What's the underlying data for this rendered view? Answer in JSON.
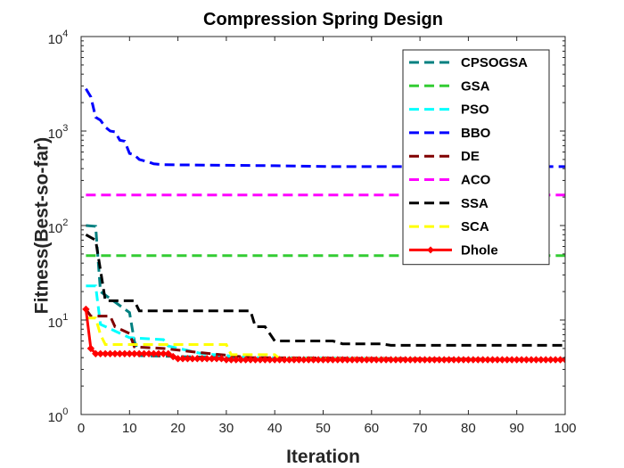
{
  "chart_data": {
    "type": "line",
    "title": "Compression Spring Design",
    "xlabel": "Iteration",
    "ylabel": "Fitness(Best-so-far)",
    "xlim": [
      0,
      100
    ],
    "ylim": [
      1,
      10000
    ],
    "yscale": "log",
    "xticks": [
      0,
      10,
      20,
      30,
      40,
      50,
      60,
      70,
      80,
      90,
      100
    ],
    "yticks": [
      1,
      10,
      100,
      1000,
      10000
    ],
    "ytick_labels": [
      {
        "base": "10",
        "exp": "0"
      },
      {
        "base": "10",
        "exp": "1"
      },
      {
        "base": "10",
        "exp": "2"
      },
      {
        "base": "10",
        "exp": "3"
      },
      {
        "base": "10",
        "exp": "4"
      }
    ],
    "grid": false,
    "legend_position": "top-right",
    "series": [
      {
        "name": "CPSOGSA",
        "color": "#008080",
        "dash": "dashed",
        "points": [
          [
            1,
            100
          ],
          [
            3,
            98
          ],
          [
            4,
            20
          ],
          [
            10,
            12
          ],
          [
            11,
            6
          ],
          [
            12,
            4.2
          ],
          [
            20,
            4.1
          ],
          [
            40,
            3.9
          ],
          [
            60,
            3.8
          ],
          [
            100,
            3.8
          ]
        ]
      },
      {
        "name": "GSA",
        "color": "#33cc33",
        "dash": "dashed",
        "points": [
          [
            1,
            48
          ],
          [
            100,
            48
          ]
        ]
      },
      {
        "name": "PSO",
        "color": "#00ffff",
        "dash": "dashed",
        "points": [
          [
            1,
            23
          ],
          [
            3,
            23
          ],
          [
            4,
            9
          ],
          [
            10,
            6.5
          ],
          [
            17,
            6.2
          ],
          [
            18,
            5.3
          ],
          [
            25,
            4.4
          ],
          [
            35,
            4
          ],
          [
            100,
            3.8
          ]
        ]
      },
      {
        "name": "BBO",
        "color": "#0000ff",
        "dash": "dashed",
        "points": [
          [
            1,
            2800
          ],
          [
            2,
            2300
          ],
          [
            3,
            1400
          ],
          [
            4,
            1300
          ],
          [
            5,
            1100
          ],
          [
            6,
            1000
          ],
          [
            7,
            980
          ],
          [
            8,
            800
          ],
          [
            9,
            780
          ],
          [
            10,
            580
          ],
          [
            11,
            560
          ],
          [
            12,
            500
          ],
          [
            14,
            470
          ],
          [
            15,
            450
          ],
          [
            17,
            440
          ],
          [
            40,
            430
          ],
          [
            52,
            420
          ],
          [
            100,
            420
          ]
        ]
      },
      {
        "name": "DE",
        "color": "#800000",
        "dash": "dashed",
        "points": [
          [
            1,
            13
          ],
          [
            2,
            11
          ],
          [
            6,
            11
          ],
          [
            7,
            8.5
          ],
          [
            10,
            7.2
          ],
          [
            11,
            5.2
          ],
          [
            17,
            5
          ],
          [
            25,
            4.5
          ],
          [
            35,
            4
          ],
          [
            100,
            3.8
          ]
        ]
      },
      {
        "name": "ACO",
        "color": "#ff00ff",
        "dash": "dashed",
        "points": [
          [
            1,
            210
          ],
          [
            100,
            210
          ]
        ]
      },
      {
        "name": "SSA",
        "color": "#000000",
        "dash": "dashed",
        "points": [
          [
            1,
            80
          ],
          [
            3,
            70
          ],
          [
            5,
            16
          ],
          [
            11,
            16
          ],
          [
            12,
            12.5
          ],
          [
            35,
            12.5
          ],
          [
            36,
            8.5
          ],
          [
            38,
            8.5
          ],
          [
            40,
            6
          ],
          [
            52,
            6
          ],
          [
            54,
            5.6
          ],
          [
            62,
            5.6
          ],
          [
            64,
            5.4
          ],
          [
            100,
            5.4
          ]
        ]
      },
      {
        "name": "SCA",
        "color": "#ffff00",
        "dash": "dashed",
        "points": [
          [
            1,
            10.5
          ],
          [
            3,
            10.5
          ],
          [
            4,
            7
          ],
          [
            5,
            5.5
          ],
          [
            30,
            5.5
          ],
          [
            31,
            4.3
          ],
          [
            40,
            4.3
          ],
          [
            41,
            3.9
          ],
          [
            100,
            3.8
          ]
        ]
      },
      {
        "name": "Dhole",
        "color": "#ff0000",
        "dash": "solid",
        "marker": "diamond",
        "points": [
          [
            1,
            13
          ],
          [
            2,
            5
          ],
          [
            3,
            4.4
          ],
          [
            18,
            4.4
          ],
          [
            19,
            4.1
          ],
          [
            20,
            3.9
          ],
          [
            28,
            3.9
          ],
          [
            30,
            3.8
          ],
          [
            100,
            3.8
          ]
        ]
      }
    ]
  }
}
